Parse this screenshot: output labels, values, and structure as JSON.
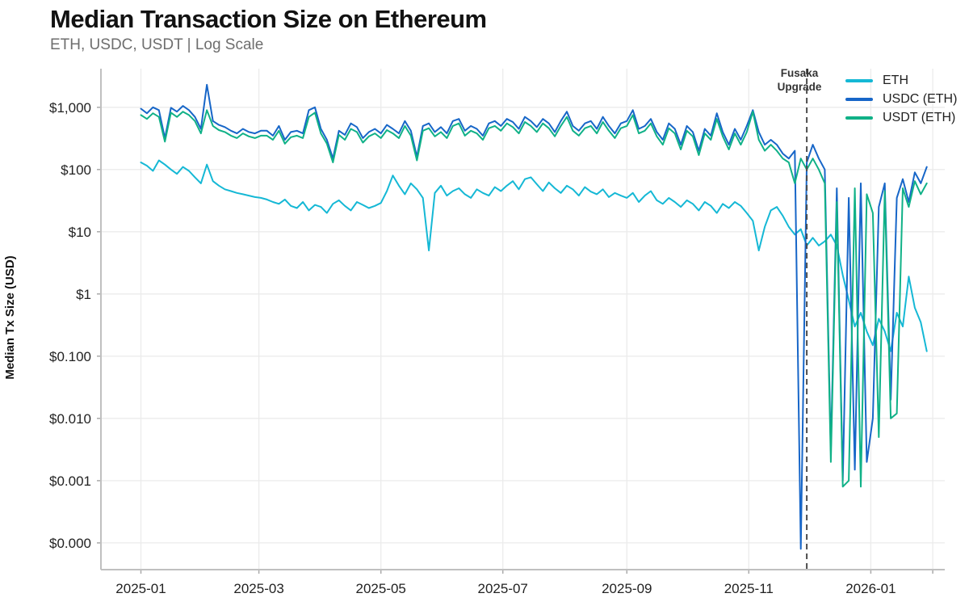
{
  "header": {
    "title": "Median Transaction Size on Ethereum",
    "subtitle": "ETH, USDC, USDT | Log Scale"
  },
  "chart_data": {
    "type": "line",
    "title": "Median Transaction Size on Ethereum",
    "subtitle": "ETH, USDC, USDT | Log Scale",
    "ylabel": "Median Tx Size (USD)",
    "xlabel": "",
    "y_scale": "log",
    "grid": true,
    "legend_position": "top-right",
    "x_unit": "days since 2025-01-01",
    "xlim_days": [
      -20,
      402
    ],
    "ylim_log10": [
      -4.43,
      3.62
    ],
    "x_ticks": [
      {
        "day": 0,
        "label": "2025-01"
      },
      {
        "day": 59,
        "label": "2025-03"
      },
      {
        "day": 120,
        "label": "2025-05"
      },
      {
        "day": 181,
        "label": "2025-07"
      },
      {
        "day": 243,
        "label": "2025-09"
      },
      {
        "day": 304,
        "label": "2025-11"
      },
      {
        "day": 365,
        "label": "2026-01"
      },
      {
        "day": 396,
        "label": ""
      }
    ],
    "y_ticks": [
      {
        "value": 1000,
        "label": "$1,000"
      },
      {
        "value": 100,
        "label": "$100"
      },
      {
        "value": 10,
        "label": "$10"
      },
      {
        "value": 1,
        "label": "$1"
      },
      {
        "value": 0.1,
        "label": "$0.100"
      },
      {
        "value": 0.01,
        "label": "$0.010"
      },
      {
        "value": 0.001,
        "label": "$0.001"
      },
      {
        "value": 0.0001,
        "label": "$0.000"
      }
    ],
    "annotation": {
      "label": "Fusaka\nUpgrade",
      "day": 333,
      "line_style": "dashed"
    },
    "x": [
      0,
      3,
      6,
      9,
      12,
      15,
      18,
      21,
      24,
      27,
      30,
      33,
      36,
      39,
      42,
      45,
      48,
      51,
      54,
      57,
      60,
      63,
      66,
      69,
      72,
      75,
      78,
      81,
      84,
      87,
      90,
      93,
      96,
      99,
      102,
      105,
      108,
      111,
      114,
      117,
      120,
      123,
      126,
      129,
      132,
      135,
      138,
      141,
      144,
      147,
      150,
      153,
      156,
      159,
      162,
      165,
      168,
      171,
      174,
      177,
      180,
      183,
      186,
      189,
      192,
      195,
      198,
      201,
      204,
      207,
      210,
      213,
      216,
      219,
      222,
      225,
      228,
      231,
      234,
      237,
      240,
      243,
      246,
      249,
      252,
      255,
      258,
      261,
      264,
      267,
      270,
      273,
      276,
      279,
      282,
      285,
      288,
      291,
      294,
      297,
      300,
      303,
      306,
      309,
      312,
      315,
      318,
      321,
      324,
      327,
      330,
      333,
      336,
      339,
      342,
      345,
      348,
      351,
      354,
      357,
      360,
      363,
      366,
      369,
      372,
      375,
      378,
      381,
      384,
      387,
      390,
      393
    ],
    "series": [
      {
        "name": "ETH",
        "color": "#15b8d5",
        "values": [
          130,
          115,
          95,
          140,
          120,
          100,
          85,
          110,
          95,
          75,
          60,
          120,
          65,
          55,
          48,
          45,
          42,
          40,
          38,
          36,
          35,
          33,
          30,
          28,
          33,
          26,
          24,
          30,
          22,
          27,
          25,
          20,
          28,
          32,
          26,
          22,
          30,
          27,
          24,
          26,
          29,
          45,
          80,
          55,
          40,
          60,
          48,
          35,
          5,
          42,
          55,
          38,
          45,
          50,
          40,
          35,
          48,
          42,
          38,
          52,
          45,
          55,
          65,
          48,
          70,
          75,
          58,
          45,
          62,
          50,
          42,
          55,
          48,
          38,
          52,
          44,
          40,
          48,
          36,
          42,
          38,
          35,
          42,
          30,
          38,
          45,
          32,
          28,
          35,
          30,
          25,
          32,
          28,
          22,
          30,
          26,
          20,
          28,
          24,
          30,
          26,
          20,
          15,
          5,
          12,
          22,
          25,
          18,
          12,
          9,
          11,
          6,
          8,
          6,
          7,
          9,
          6,
          2,
          0.8,
          0.3,
          0.5,
          0.25,
          0.15,
          0.4,
          0.25,
          0.12,
          0.5,
          0.3,
          1.9,
          0.6,
          0.35,
          0.12
        ]
      },
      {
        "name": "USDC (ETH)",
        "color": "#1766c8",
        "values": [
          950,
          800,
          1000,
          900,
          320,
          980,
          850,
          1050,
          900,
          700,
          450,
          2300,
          600,
          520,
          480,
          420,
          380,
          450,
          400,
          380,
          420,
          420,
          350,
          500,
          300,
          400,
          420,
          380,
          900,
          1000,
          450,
          300,
          150,
          420,
          360,
          550,
          480,
          320,
          400,
          450,
          380,
          520,
          450,
          380,
          600,
          420,
          160,
          500,
          550,
          400,
          480,
          380,
          600,
          650,
          420,
          500,
          450,
          350,
          550,
          600,
          500,
          650,
          580,
          450,
          700,
          600,
          480,
          650,
          550,
          400,
          600,
          850,
          500,
          420,
          550,
          600,
          450,
          700,
          500,
          380,
          550,
          600,
          900,
          450,
          500,
          650,
          400,
          300,
          550,
          450,
          250,
          500,
          400,
          200,
          450,
          350,
          800,
          400,
          250,
          450,
          300,
          500,
          900,
          400,
          250,
          300,
          250,
          180,
          150,
          200,
          8e-05,
          130,
          250,
          150,
          100,
          0.003,
          50,
          0.001,
          35,
          0.0015,
          60,
          0.002,
          0.01,
          25,
          60,
          0.02,
          35,
          70,
          30,
          90,
          60,
          110
        ]
      },
      {
        "name": "USDT (ETH)",
        "color": "#10b187",
        "values": [
          750,
          650,
          800,
          700,
          280,
          820,
          700,
          850,
          750,
          600,
          380,
          900,
          500,
          430,
          400,
          350,
          320,
          380,
          340,
          320,
          350,
          350,
          300,
          420,
          260,
          330,
          350,
          320,
          700,
          820,
          380,
          260,
          130,
          360,
          300,
          450,
          400,
          270,
          340,
          380,
          320,
          430,
          380,
          320,
          500,
          350,
          140,
          420,
          460,
          340,
          400,
          320,
          500,
          550,
          350,
          420,
          380,
          300,
          460,
          500,
          420,
          550,
          480,
          380,
          580,
          500,
          400,
          550,
          460,
          340,
          500,
          700,
          420,
          350,
          460,
          500,
          380,
          580,
          420,
          320,
          460,
          500,
          750,
          380,
          420,
          550,
          340,
          250,
          460,
          380,
          210,
          420,
          340,
          170,
          380,
          300,
          650,
          340,
          210,
          380,
          250,
          400,
          850,
          300,
          200,
          250,
          200,
          150,
          130,
          60,
          150,
          100,
          150,
          100,
          60,
          0.002,
          30,
          0.0008,
          0.001,
          50,
          0.0008,
          40,
          20,
          0.005,
          45,
          0.01,
          0.012,
          50,
          25,
          65,
          40,
          60
        ]
      }
    ]
  },
  "colors": {
    "grid": "#ebebeb",
    "axis": "#c0c0c0",
    "tick_mark": "#aaaaaa",
    "tick_text": "#222222",
    "title_text": "#121212",
    "subtitle_text": "#6e6e6e",
    "annotation_line": "#4d4d4d",
    "background": "#ffffff"
  }
}
